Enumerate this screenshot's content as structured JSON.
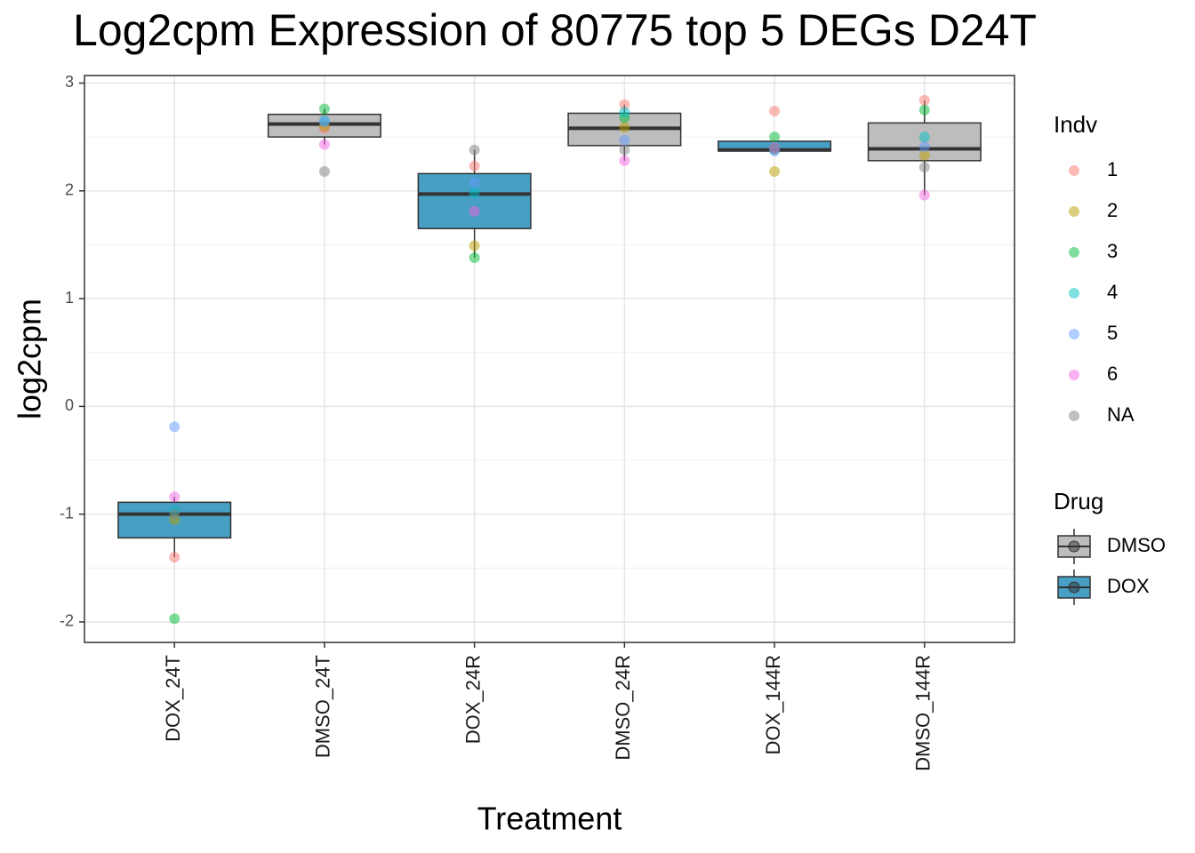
{
  "chart_data": {
    "type": "box",
    "title": "Log2cpm Expression of 80775 top 5 DEGs D24T",
    "x_label": "Treatment",
    "y_label": "log2cpm",
    "categories": [
      "DOX_24T",
      "DMSO_24T",
      "DOX_24R",
      "DMSO_24R",
      "DOX_144R",
      "DMSO_144R"
    ],
    "ylim": [
      -2.19,
      3.07
    ],
    "yticks": [
      -2,
      -1,
      0,
      1,
      2,
      3
    ],
    "grid": true,
    "boxes": [
      {
        "low": -1.4,
        "q1": -1.22,
        "median": -1.0,
        "q3": -0.89,
        "high": -0.84,
        "color": "#479fc3"
      },
      {
        "low": 2.43,
        "q1": 2.5,
        "median": 2.62,
        "q3": 2.71,
        "high": 2.76,
        "color": "#bdbdbd"
      },
      {
        "low": 1.38,
        "q1": 1.65,
        "median": 1.97,
        "q3": 2.16,
        "high": 2.38,
        "color": "#479fc3"
      },
      {
        "low": 2.28,
        "q1": 2.42,
        "median": 2.58,
        "q3": 2.72,
        "high": 2.8,
        "color": "#bdbdbd"
      },
      {
        "low": 2.37,
        "q1": 2.37,
        "median": 2.38,
        "q3": 2.46,
        "high": 2.46,
        "color": "#479fc3"
      },
      {
        "low": 1.96,
        "q1": 2.28,
        "median": 2.39,
        "q3": 2.63,
        "high": 2.84,
        "color": "#bdbdbd"
      }
    ],
    "legend_title": "Indv",
    "series": [
      {
        "name": "1",
        "color": "#F8766D",
        "values": [
          -1.4,
          2.58,
          2.23,
          2.8,
          2.74,
          2.84
        ]
      },
      {
        "name": "2",
        "color": "#B79F00",
        "values": [
          -1.05,
          2.6,
          1.49,
          2.59,
          2.18,
          2.33
        ]
      },
      {
        "name": "3",
        "color": "#00BA38",
        "values": [
          -1.97,
          2.76,
          1.38,
          2.68,
          2.5,
          2.75
        ]
      },
      {
        "name": "4",
        "color": "#00BFC4",
        "values": [
          -0.97,
          2.65,
          1.98,
          2.73,
          2.38,
          2.5
        ]
      },
      {
        "name": "5",
        "color": "#619CFF",
        "values": [
          -0.19,
          2.64,
          2.08,
          2.47,
          2.37,
          2.41
        ]
      },
      {
        "name": "6",
        "color": "#F564E3",
        "values": [
          -0.84,
          2.43,
          1.81,
          2.28,
          2.4,
          1.96
        ]
      },
      {
        "name": "NA",
        "color": "#7F7F7F",
        "values": [
          -1.0,
          2.18,
          2.38,
          2.38,
          2.39,
          2.22
        ]
      }
    ],
    "drug_legend": {
      "title": "Drug",
      "items": [
        {
          "name": "DMSO",
          "color": "#bdbdbd"
        },
        {
          "name": "DOX",
          "color": "#479fc3"
        }
      ]
    }
  }
}
